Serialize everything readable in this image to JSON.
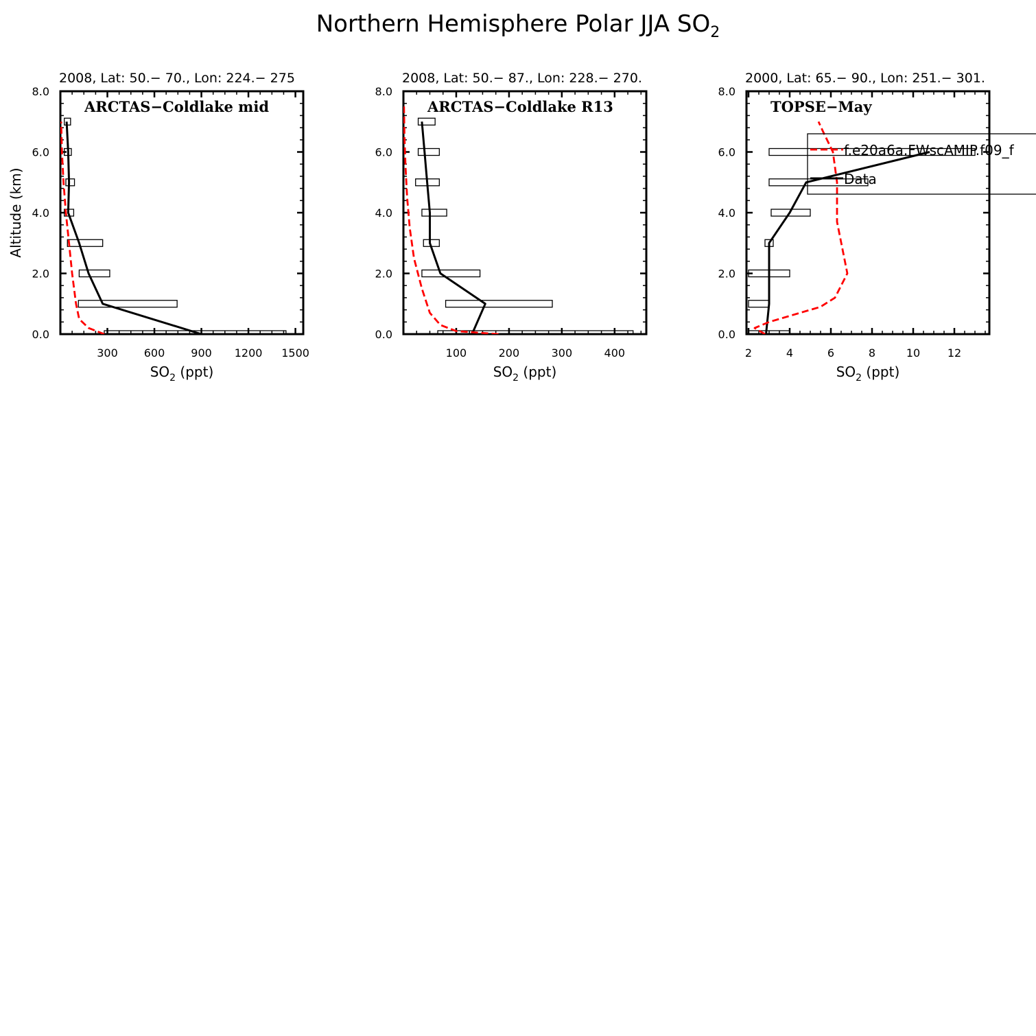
{
  "title": {
    "text": "Northern Hemisphere Polar JJA SO",
    "sub": "2"
  },
  "ylabel": "Altitude (km)",
  "xlabel": {
    "pre": "SO",
    "sub": "2",
    "post": " (ppt)"
  },
  "colors": {
    "model": "#ff0000",
    "data": "#000000"
  },
  "legend": {
    "model_label": "f.e20a6a.FWscAMIP.f09_f",
    "data_label": "Data"
  },
  "chart_data": [
    {
      "type": "line",
      "top_label": "2008, Lat:  50.− 70., Lon: 224.− 275",
      "panel_label": "ARCTAS−Coldlake mid",
      "xlim": [
        0,
        1550
      ],
      "ylim": [
        0,
        8
      ],
      "xticks": [
        300,
        600,
        900,
        1200,
        1500
      ],
      "xtick_labels": [
        "300",
        "600",
        "900",
        "1200",
        "1500"
      ],
      "yticks": [
        0,
        2,
        4,
        6,
        8
      ],
      "ytick_labels": [
        "0.0",
        "2.0",
        "4.0",
        "6.0",
        "8.0"
      ],
      "series": [
        {
          "name": "Data",
          "style": "solid",
          "points": [
            [
              900,
              0
            ],
            [
              270,
              1
            ],
            [
              180,
              2
            ],
            [
              120,
              3
            ],
            [
              50,
              4
            ],
            [
              55,
              5
            ],
            [
              50,
              6
            ],
            [
              40,
              7
            ]
          ]
        },
        {
          "name": "f.e20a6a.FWscAMIP.f09_f",
          "style": "dashed",
          "points": [
            [
              280,
              0
            ],
            [
              180,
              0.2
            ],
            [
              120,
              0.5
            ],
            [
              100,
              1
            ],
            [
              75,
              2
            ],
            [
              55,
              3
            ],
            [
              35,
              4
            ],
            [
              20,
              5
            ],
            [
              10,
              6
            ],
            [
              5,
              7
            ]
          ]
        }
      ],
      "boxes": [
        {
          "y": 0,
          "x_min": 280,
          "x_max": 1440
        },
        {
          "y": 1,
          "x_min": 115,
          "x_max": 745
        },
        {
          "y": 2,
          "x_min": 120,
          "x_max": 315
        },
        {
          "y": 3,
          "x_min": 45,
          "x_max": 270
        },
        {
          "y": 4,
          "x_min": 25,
          "x_max": 85
        },
        {
          "y": 5,
          "x_min": 35,
          "x_max": 90
        },
        {
          "y": 6,
          "x_min": 25,
          "x_max": 70
        },
        {
          "y": 7,
          "x_min": 25,
          "x_max": 65
        }
      ]
    },
    {
      "type": "line",
      "top_label": "2008, Lat:  50.− 87., Lon: 228.− 270.",
      "panel_label": "ARCTAS−Coldlake R13",
      "xlim": [
        0,
        460
      ],
      "ylim": [
        0,
        8
      ],
      "xticks": [
        100,
        200,
        300,
        400
      ],
      "xtick_labels": [
        "100",
        "200",
        "300",
        "400"
      ],
      "yticks": [
        0,
        2,
        4,
        6,
        8
      ],
      "ytick_labels": [
        "0.0",
        "2.0",
        "4.0",
        "6.0",
        "8.0"
      ],
      "series": [
        {
          "name": "Data",
          "style": "solid",
          "points": [
            [
              130,
              0
            ],
            [
              155,
              1
            ],
            [
              70,
              2
            ],
            [
              50,
              3
            ],
            [
              50,
              4
            ],
            [
              45,
              5
            ],
            [
              40,
              6
            ],
            [
              35,
              7
            ]
          ]
        },
        {
          "name": "f.e20a6a.FWscAMIP.f09_f",
          "style": "dashed",
          "points": [
            [
              180,
              0
            ],
            [
              100,
              0.1
            ],
            [
              70,
              0.3
            ],
            [
              50,
              0.7
            ],
            [
              35,
              1.5
            ],
            [
              20,
              2.5
            ],
            [
              12,
              3.5
            ],
            [
              7,
              4.5
            ],
            [
              4,
              5.5
            ],
            [
              2,
              6.5
            ],
            [
              1,
              7.5
            ]
          ]
        }
      ],
      "boxes": [
        {
          "y": 0,
          "x_min": 65,
          "x_max": 435
        },
        {
          "y": 1,
          "x_min": 80,
          "x_max": 282
        },
        {
          "y": 2,
          "x_min": 35,
          "x_max": 145
        },
        {
          "y": 3,
          "x_min": 38,
          "x_max": 68
        },
        {
          "y": 4,
          "x_min": 35,
          "x_max": 82
        },
        {
          "y": 5,
          "x_min": 23,
          "x_max": 68
        },
        {
          "y": 6,
          "x_min": 28,
          "x_max": 68
        },
        {
          "y": 7,
          "x_min": 28,
          "x_max": 60
        }
      ]
    },
    {
      "type": "line",
      "top_label": "2000, Lat: 65.− 90., Lon: 251.− 301.",
      "panel_label": "TOPSE−May",
      "xlim": [
        1.9,
        13.7
      ],
      "ylim": [
        0,
        8
      ],
      "xticks": [
        2,
        4,
        6,
        8,
        10,
        12
      ],
      "xtick_labels": [
        "2",
        "4",
        "6",
        "8",
        "10",
        "12"
      ],
      "yticks": [
        0,
        2,
        4,
        6,
        8
      ],
      "ytick_labels": [
        "0.0",
        "2.0",
        "4.0",
        "6.0",
        "8.0"
      ],
      "series": [
        {
          "name": "Data",
          "style": "solid",
          "points": [
            [
              2.85,
              0
            ],
            [
              3,
              1
            ],
            [
              3,
              2
            ],
            [
              3,
              3
            ],
            [
              4,
              4
            ],
            [
              4.8,
              5
            ],
            [
              10.8,
              6
            ]
          ]
        },
        {
          "name": "f.e20a6a.FWscAMIP.f09_f",
          "style": "dashed",
          "points": [
            [
              2.8,
              0
            ],
            [
              2.3,
              0.2
            ],
            [
              3,
              0.4
            ],
            [
              4.5,
              0.7
            ],
            [
              5.5,
              0.9
            ],
            [
              6.2,
              1.2
            ],
            [
              6.8,
              2
            ],
            [
              6.3,
              3.7
            ],
            [
              6.3,
              5
            ],
            [
              6.1,
              6
            ],
            [
              5.6,
              6.7
            ],
            [
              5.4,
              7
            ]
          ]
        }
      ],
      "boxes": [
        {
          "y": 0,
          "x_min": 2.0,
          "x_max": 4.0
        },
        {
          "y": 1,
          "x_min": 2.0,
          "x_max": 3.0
        },
        {
          "y": 2,
          "x_min": 2.0,
          "x_max": 4.0
        },
        {
          "y": 3,
          "x_min": 2.8,
          "x_max": 3.2
        },
        {
          "y": 4,
          "x_min": 3.1,
          "x_max": 5.0
        },
        {
          "y": 5,
          "x_min": 3.0,
          "x_max": 7.8
        },
        {
          "y": 6,
          "x_min": 3.0,
          "x_max": 13.0
        }
      ],
      "has_legend": true
    }
  ]
}
